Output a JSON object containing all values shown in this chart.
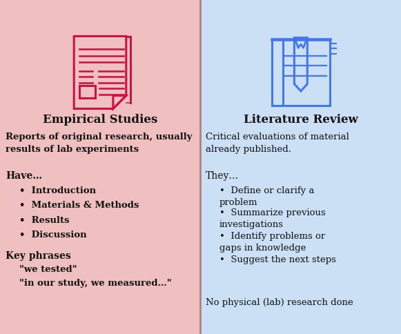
{
  "left_bg": "#f0c0c0",
  "right_bg": "#cce0f5",
  "divider_color": "#b08080",
  "left_title": "Empirical Studies",
  "right_title": "Literature Review",
  "title_fontsize": 12,
  "title_color": "#111111",
  "left_desc": "Reports of original research, usually\nresults of lab experiments",
  "right_desc": "Critical evaluations of material\nalready published.",
  "left_section1": "Have…",
  "left_bullets": [
    "Introduction",
    "Materials & Methods",
    "Results",
    "Discussion"
  ],
  "left_section2": "Key phrases",
  "left_phrases": [
    "\"we tested\"",
    "\"in our study, we measured…\""
  ],
  "right_section1": "They…",
  "right_bullets_line1": [
    "Define or clarify a\nproblem",
    "Summarize previous\ninvestigations",
    "Identify problems or\ngaps in knowledge",
    "Suggest the next steps"
  ],
  "right_bottom": "No physical (lab) research done",
  "body_fontsize": 9.5,
  "section_fontsize": 10,
  "icon_color_left": "#cc1144",
  "icon_color_right": "#4477ee",
  "lw": 2.2
}
